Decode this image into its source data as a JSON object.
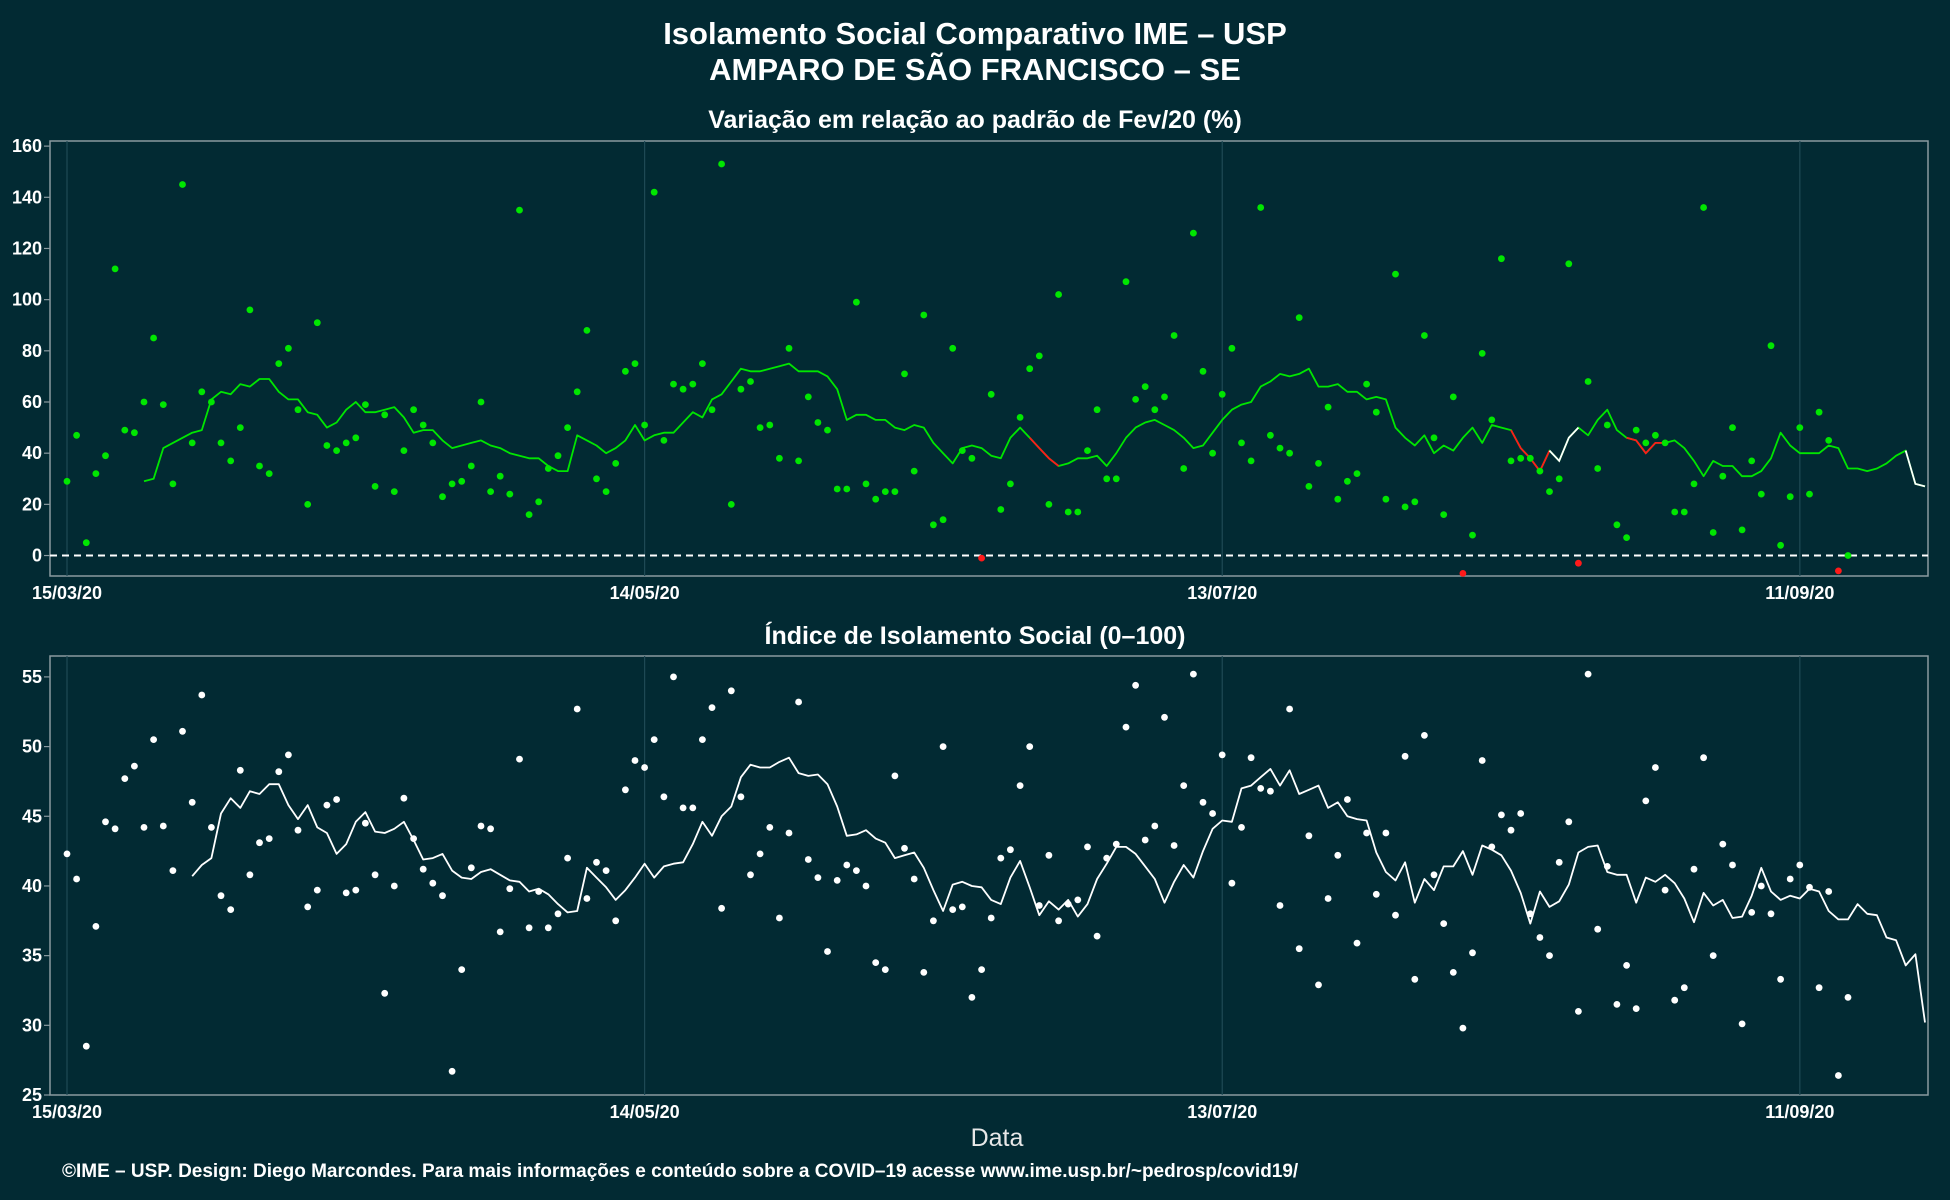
{
  "header": {
    "title_line1": "Isolamento Social Comparativo IME – USP",
    "title_line2": "AMPARO DE SÃO FRANCISCO – SE"
  },
  "footer": {
    "credit": "©IME – USP. Design: Diego Marcondes. Para mais informações e conteúdo sobre a COVID–19 acesse www.ime.usp.br/~pedrosp/covid19/"
  },
  "colors": {
    "background": "#022a33",
    "panel_border": "#8a9aa0",
    "green": "#00e600",
    "red": "#ff1a1a",
    "white": "#ffffff"
  },
  "chart_data": [
    {
      "type": "scatter",
      "title": "Variação em relação ao padrão de Fev/20 (%)",
      "xlabel": "",
      "ylabel": "",
      "x_start": "2020-03-15",
      "x_end": "2020-09-24",
      "xticks": [
        {
          "date": "2020-03-15",
          "label": "15/03/20"
        },
        {
          "date": "2020-05-14",
          "label": "14/05/20"
        },
        {
          "date": "2020-07-13",
          "label": "13/07/20"
        },
        {
          "date": "2020-09-11",
          "label": "11/09/20"
        }
      ],
      "ylim": [
        -8,
        162
      ],
      "yticks": [
        0,
        20,
        40,
        60,
        80,
        100,
        120,
        140,
        160
      ],
      "reference_line": 0,
      "grid": true,
      "series": [
        {
          "points": [
            29,
            47,
            5,
            32,
            39,
            112,
            49,
            48,
            60,
            85,
            59,
            28,
            145,
            44,
            64,
            60,
            44,
            37,
            50,
            96,
            35,
            32,
            75,
            81,
            57,
            20,
            91,
            43,
            41,
            44,
            46,
            59,
            27,
            55,
            25,
            41,
            57,
            51,
            44,
            23,
            28,
            29,
            35,
            60,
            25,
            31,
            24,
            135,
            16,
            21,
            34,
            39,
            50,
            64,
            88,
            30,
            25,
            36,
            72,
            75,
            51,
            142,
            45,
            67,
            65,
            67,
            75,
            57,
            153,
            20,
            65,
            68,
            50,
            51,
            38,
            81,
            37,
            62,
            52,
            49,
            26,
            26,
            99,
            28,
            22,
            25,
            25,
            71,
            33,
            94,
            12,
            14,
            81,
            41,
            38,
            -1,
            63,
            18,
            28,
            54,
            73,
            78,
            20,
            102,
            17,
            17,
            41,
            57,
            30,
            30,
            107,
            61,
            66,
            57,
            62,
            86,
            34,
            126,
            72,
            40,
            63,
            81,
            44,
            37,
            136,
            47,
            42,
            40,
            93,
            27,
            36,
            58,
            22,
            29,
            32,
            67,
            56,
            22,
            110,
            19,
            21,
            86,
            46,
            16,
            62,
            -7,
            8,
            79,
            53,
            116,
            37,
            38,
            38,
            33,
            25,
            30,
            114,
            -3,
            68,
            34,
            51,
            12,
            7,
            49,
            44,
            47,
            44,
            17,
            17,
            28,
            136,
            9,
            31,
            50,
            10,
            37,
            24,
            82,
            4,
            23,
            50,
            24,
            56,
            45,
            -6,
            0
          ],
          "rolling_average": [
            29,
            30,
            42,
            44,
            46,
            48,
            49,
            61,
            64,
            63,
            67,
            66,
            69,
            69,
            64,
            61,
            61,
            56,
            55,
            50,
            52,
            57,
            60,
            56,
            56,
            57,
            58,
            54,
            48,
            49,
            49,
            45,
            42,
            43,
            44,
            45,
            43,
            42,
            40,
            39,
            38,
            38,
            35,
            33,
            33,
            47,
            45,
            43,
            40,
            42,
            45,
            51,
            45,
            47,
            48,
            48,
            52,
            56,
            54,
            61,
            63,
            68,
            73,
            72,
            72,
            73,
            74,
            75,
            72,
            72,
            72,
            70,
            65,
            53,
            55,
            55,
            53,
            53,
            50,
            49,
            51,
            50,
            44,
            40,
            36,
            42,
            43,
            42,
            39,
            38,
            46,
            50,
            46,
            42,
            38,
            35,
            36,
            38,
            38,
            39,
            35,
            40,
            46,
            50,
            52,
            53,
            51,
            49,
            46,
            42,
            43,
            48,
            53,
            57,
            59,
            60,
            66,
            68,
            71,
            70,
            71,
            73,
            66,
            66,
            67,
            64,
            64,
            61,
            62,
            61,
            50,
            46,
            43,
            47,
            40,
            43,
            41,
            46,
            50,
            44,
            51,
            50,
            49,
            42,
            38,
            33,
            41,
            37,
            46,
            50,
            47,
            53,
            57,
            49,
            46,
            45,
            40,
            44,
            44,
            45,
            42,
            37,
            31,
            37,
            35,
            35,
            31,
            31,
            33,
            38,
            48,
            43,
            40,
            40,
            40,
            43,
            42,
            34,
            34,
            33,
            34,
            36,
            39,
            41,
            28,
            27
          ],
          "rolling_color_segments": [
            {
              "from_index": 92,
              "to_index": 95,
              "color": "red"
            },
            {
              "from_index": 142,
              "to_index": 146,
              "color": "red"
            },
            {
              "from_index": 146,
              "to_index": 149,
              "color": "white"
            },
            {
              "from_index": 154,
              "to_index": 158,
              "color": "red"
            },
            {
              "from_index": 183,
              "to_index": 185,
              "color": "white"
            }
          ]
        }
      ]
    },
    {
      "type": "scatter",
      "title": "Índice de Isolamento Social (0–100)",
      "xlabel": "Data",
      "ylabel": "",
      "x_start": "2020-03-15",
      "x_end": "2020-09-24",
      "xticks": [
        {
          "date": "2020-03-15",
          "label": "15/03/20"
        },
        {
          "date": "2020-05-14",
          "label": "14/05/20"
        },
        {
          "date": "2020-07-13",
          "label": "13/07/20"
        },
        {
          "date": "2020-09-11",
          "label": "11/09/20"
        }
      ],
      "ylim": [
        25,
        56.5
      ],
      "yticks": [
        25,
        30,
        35,
        40,
        45,
        50,
        55
      ],
      "grid": true,
      "series": [
        {
          "points": [
            42.3,
            40.5,
            28.5,
            37.1,
            44.6,
            44.1,
            47.7,
            48.6,
            44.2,
            50.5,
            44.3,
            41.1,
            51.1,
            46.0,
            53.7,
            44.2,
            39.3,
            38.3,
            48.3,
            40.8,
            43.1,
            43.4,
            48.2,
            49.4,
            44.0,
            38.5,
            39.7,
            45.8,
            46.2,
            39.5,
            39.7,
            44.5,
            40.8,
            32.3,
            40.0,
            46.3,
            43.4,
            41.2,
            40.2,
            39.3,
            26.7,
            34.0,
            41.3,
            44.3,
            44.1,
            36.7,
            39.8,
            49.1,
            37.0,
            39.6,
            37.0,
            38.0,
            42.0,
            52.7,
            39.1,
            41.7,
            41.1,
            37.5,
            46.9,
            49.0,
            48.5,
            50.5,
            46.4,
            55.0,
            45.6,
            45.6,
            50.5,
            52.8,
            38.4,
            54.0,
            46.4,
            40.8,
            42.3,
            44.2,
            37.7,
            43.8,
            53.2,
            41.9,
            40.6,
            35.3,
            40.4,
            41.5,
            41.1,
            40.0,
            34.5,
            34.0,
            47.9,
            42.7,
            40.5,
            33.8,
            37.5,
            50.0,
            38.3,
            38.5,
            32.0,
            34.0,
            37.7,
            42.0,
            42.6,
            47.2,
            50.0,
            38.6,
            42.2,
            37.5,
            38.7,
            39.0,
            42.8,
            36.4,
            42.0,
            43.0,
            51.4,
            54.4,
            43.3,
            44.3,
            52.1,
            42.9,
            47.2,
            55.2,
            46.0,
            45.2,
            49.4,
            40.2,
            44.2,
            49.2,
            47.0,
            46.8,
            38.6,
            52.7,
            35.5,
            43.6,
            32.9,
            39.1,
            42.2,
            46.2,
            35.9,
            43.8,
            39.4,
            43.8,
            37.9,
            49.3,
            33.3,
            50.8,
            40.8,
            37.3,
            33.8,
            29.8,
            35.2,
            49.0,
            42.8,
            45.1,
            44.0,
            45.2,
            38.0,
            36.3,
            35.0,
            41.7,
            44.6,
            31.0,
            55.2,
            36.9,
            41.4,
            31.5,
            34.3,
            31.2,
            46.1,
            48.5,
            39.7,
            31.8,
            32.7,
            41.2,
            49.2,
            35.0,
            43.0,
            41.5,
            30.1,
            38.1,
            40.0,
            38.0,
            33.3,
            40.5,
            41.5,
            39.9,
            32.7,
            39.6,
            26.4,
            32.0
          ],
          "rolling_average": [
            40.7,
            41.5,
            42.0,
            45.2,
            46.3,
            45.6,
            46.8,
            46.6,
            47.3,
            47.3,
            45.8,
            44.8,
            45.8,
            44.2,
            43.8,
            42.3,
            43.0,
            44.6,
            45.3,
            43.9,
            43.8,
            44.1,
            44.6,
            43.3,
            41.9,
            42.0,
            42.3,
            41.1,
            40.6,
            40.5,
            41.0,
            41.2,
            40.8,
            40.4,
            40.3,
            39.6,
            39.8,
            39.4,
            38.7,
            38.1,
            38.2,
            41.3,
            40.6,
            39.9,
            39.0,
            39.7,
            40.6,
            41.6,
            40.6,
            41.4,
            41.6,
            41.7,
            43.0,
            44.6,
            43.6,
            45.0,
            45.7,
            47.8,
            48.7,
            48.5,
            48.5,
            48.9,
            49.2,
            48.1,
            47.9,
            48.0,
            47.3,
            45.7,
            43.6,
            43.7,
            44.0,
            43.4,
            43.1,
            42.0,
            42.2,
            42.4,
            41.3,
            39.7,
            38.2,
            40.1,
            40.3,
            40.0,
            39.9,
            39.0,
            38.7,
            40.6,
            41.8,
            39.9,
            37.9,
            38.9,
            38.3,
            39.0,
            37.8,
            38.7,
            40.5,
            41.6,
            42.8,
            42.8,
            42.3,
            41.4,
            40.5,
            38.8,
            40.3,
            41.5,
            40.6,
            42.5,
            44.1,
            44.7,
            44.6,
            47.0,
            47.2,
            47.8,
            48.4,
            47.2,
            48.3,
            46.6,
            46.9,
            47.2,
            45.6,
            46.0,
            45.0,
            44.8,
            44.7,
            42.4,
            41.0,
            40.4,
            41.7,
            38.8,
            40.5,
            39.7,
            41.4,
            41.4,
            42.5,
            40.8,
            42.9,
            42.6,
            42.2,
            41.1,
            39.5,
            37.3,
            39.6,
            38.5,
            38.9,
            40.1,
            42.4,
            42.8,
            42.9,
            41.0,
            40.8,
            40.8,
            38.8,
            40.6,
            40.3,
            40.8,
            40.2,
            39.1,
            37.4,
            39.5,
            38.6,
            39.0,
            37.7,
            37.8,
            39.3,
            41.3,
            39.6,
            39.0,
            39.3,
            39.1,
            39.8,
            39.6,
            38.2,
            37.6,
            37.6,
            38.7,
            38.0,
            37.9,
            36.3,
            36.1,
            34.3,
            35.1,
            30.2
          ]
        }
      ]
    }
  ]
}
